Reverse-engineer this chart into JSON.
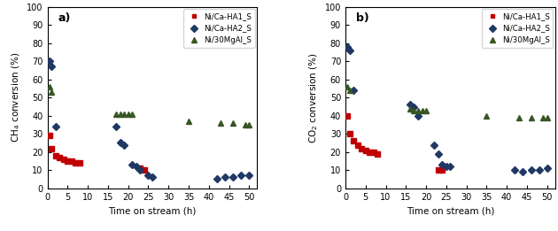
{
  "panel_a": {
    "title": "a)",
    "ylabel": "CH$_4$ conversion (%)",
    "xlabel": "Time on stream (h)",
    "ylim": [
      0,
      100
    ],
    "xlim": [
      0,
      52
    ],
    "yticks": [
      0,
      10,
      20,
      30,
      40,
      50,
      60,
      70,
      80,
      90,
      100
    ],
    "xticks": [
      0,
      5,
      10,
      15,
      20,
      25,
      30,
      35,
      40,
      45,
      50
    ],
    "red": {
      "x": [
        0.5,
        1,
        2,
        3,
        4,
        5,
        6,
        7,
        8,
        23,
        24
      ],
      "y": [
        29,
        22,
        18,
        17,
        16,
        15,
        15,
        14,
        14,
        11,
        10
      ],
      "color": "#c00000"
    },
    "blue": {
      "x": [
        0.5,
        1,
        2,
        17,
        18,
        19,
        21,
        22,
        23,
        25,
        26,
        42,
        44,
        46,
        48,
        50
      ],
      "y": [
        70,
        67,
        34,
        34,
        25,
        24,
        13,
        12,
        10,
        7,
        6,
        5,
        6,
        6,
        7,
        7
      ],
      "color": "#1f3864"
    },
    "green": {
      "x": [
        0.5,
        1,
        17,
        18,
        19,
        20,
        21,
        35,
        43,
        46,
        49,
        50
      ],
      "y": [
        56,
        53,
        41,
        41,
        41,
        41,
        41,
        37,
        36,
        36,
        35,
        35
      ],
      "color": "#375623"
    }
  },
  "panel_b": {
    "title": "b)",
    "ylabel": "CO$_2$ conversion (%)",
    "xlabel": "Time on stream (h)",
    "ylim": [
      0,
      100
    ],
    "xlim": [
      0,
      52
    ],
    "yticks": [
      0,
      10,
      20,
      30,
      40,
      50,
      60,
      70,
      80,
      90,
      100
    ],
    "xticks": [
      0,
      5,
      10,
      15,
      20,
      25,
      30,
      35,
      40,
      45,
      50
    ],
    "red": {
      "x": [
        0.5,
        1,
        2,
        3,
        4,
        5,
        6,
        7,
        8,
        23,
        24
      ],
      "y": [
        40,
        30,
        26,
        24,
        22,
        21,
        20,
        20,
        19,
        10,
        10
      ],
      "color": "#c00000"
    },
    "blue": {
      "x": [
        0.5,
        1,
        2,
        16,
        17,
        18,
        22,
        23,
        24,
        25,
        26,
        42,
        44,
        46,
        48,
        50
      ],
      "y": [
        78,
        76,
        54,
        46,
        45,
        40,
        24,
        19,
        13,
        12,
        12,
        10,
        9,
        10,
        10,
        11
      ],
      "color": "#1f3864"
    },
    "green": {
      "x": [
        0.5,
        1,
        16,
        17,
        18,
        19,
        20,
        35,
        43,
        46,
        49,
        50
      ],
      "y": [
        56,
        54,
        44,
        43,
        43,
        43,
        43,
        40,
        39,
        39,
        39,
        39
      ],
      "color": "#375623"
    }
  },
  "legend_labels": [
    "Ni/Ca-HA1_S",
    "Ni/Ca-HA2_S",
    "Ni/30MgAl_S"
  ],
  "series_keys": [
    "red",
    "blue",
    "green"
  ],
  "markers": [
    "s",
    "D",
    "^"
  ],
  "markersizes": [
    4,
    4.5,
    5
  ]
}
